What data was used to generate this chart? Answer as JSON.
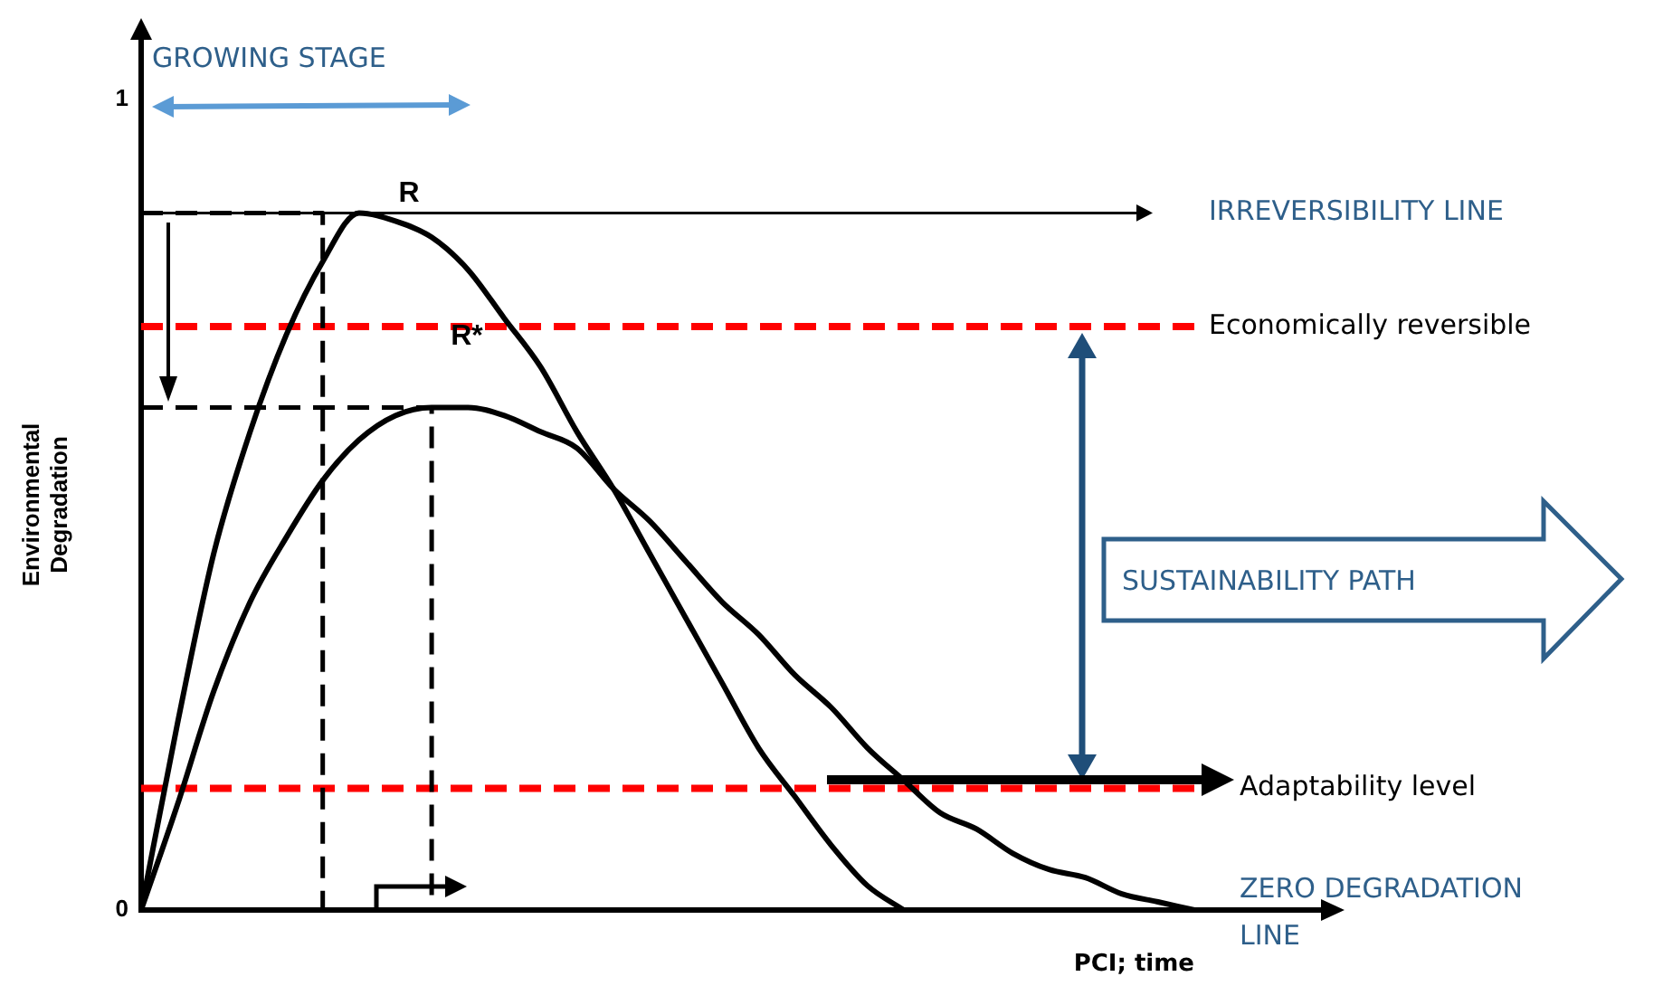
{
  "chart_data": {
    "type": "line",
    "xlabel": "PCI; time",
    "ylabel": "Environmental Degradation",
    "categories": [
      null,
      null,
      null,
      null,
      null,
      null,
      null,
      null,
      null,
      null,
      null,
      null,
      null,
      null,
      null,
      null,
      null,
      null,
      null,
      null,
      null,
      null,
      null,
      null,
      null,
      null,
      null,
      null,
      null,
      null
    ],
    "series": [
      {
        "color": "#000000",
        "values": [
          0,
          0.23,
          0.44,
          0.59,
          0.71,
          0.8,
          0.86,
          0.85,
          0.83,
          0.79,
          0.73,
          0.67,
          0.59,
          0.52,
          0.44,
          0.36,
          0.28,
          0.2,
          0.14,
          0.08,
          0.03,
          0,
          null,
          null,
          null,
          null,
          null,
          null,
          null,
          null
        ]
      },
      {
        "color": "#000000",
        "values": [
          0,
          0.13,
          0.27,
          0.38,
          0.46,
          0.53,
          0.58,
          0.61,
          0.62,
          0.62,
          0.61,
          0.59,
          0.57,
          0.52,
          0.48,
          0.43,
          0.38,
          0.34,
          0.29,
          0.25,
          0.2,
          0.16,
          0.12,
          0.1,
          0.07,
          0.05,
          0.04,
          0.02,
          0.01,
          0
        ]
      },
      {
        "type": "step",
        "line_style": "dashed",
        "color": "#000000",
        "values": [
          0.86,
          0.86,
          0.86,
          0.86,
          0.86,
          0.86,
          0,
          null,
          null,
          null,
          null,
          null,
          null,
          null,
          null,
          null,
          null,
          null,
          null,
          null,
          null,
          null,
          null,
          null,
          null,
          null,
          null,
          null,
          null,
          null
        ]
      },
      {
        "type": "step",
        "line_style": "dashed",
        "color": "#000000",
        "values": [
          0.62,
          0.62,
          0.62,
          0.62,
          0.62,
          0.62,
          0.62,
          0.62,
          0.62,
          0,
          null,
          null,
          null,
          null,
          null,
          null,
          null,
          null,
          null,
          null,
          null,
          null,
          null,
          null,
          null,
          null,
          null,
          null,
          null,
          null
        ]
      }
    ],
    "ylim": [
      0,
      1
    ],
    "yticks": [
      0,
      1
    ],
    "tick_labels": "y",
    "marker": "none",
    "legend": false,
    "grid": false,
    "ref_lines": [
      {
        "axis": "y",
        "value": 0.86,
        "label": "IRREVERSIBILITY LINE",
        "color": "#000000",
        "line_style": "solid"
      },
      {
        "axis": "y",
        "value": 0.72,
        "label": "Economically reversible",
        "color": "#ff0000",
        "line_style": "dashed"
      },
      {
        "axis": "y",
        "value": 0.15,
        "label": "Adaptability level",
        "color": "#ff0000",
        "line_style": "dashed"
      }
    ],
    "annotations": [
      "GROWING STAGE",
      "R",
      "R*",
      "SUSTAINABILITY PATH",
      "ZERO DEGRADATION LINE"
    ]
  }
}
